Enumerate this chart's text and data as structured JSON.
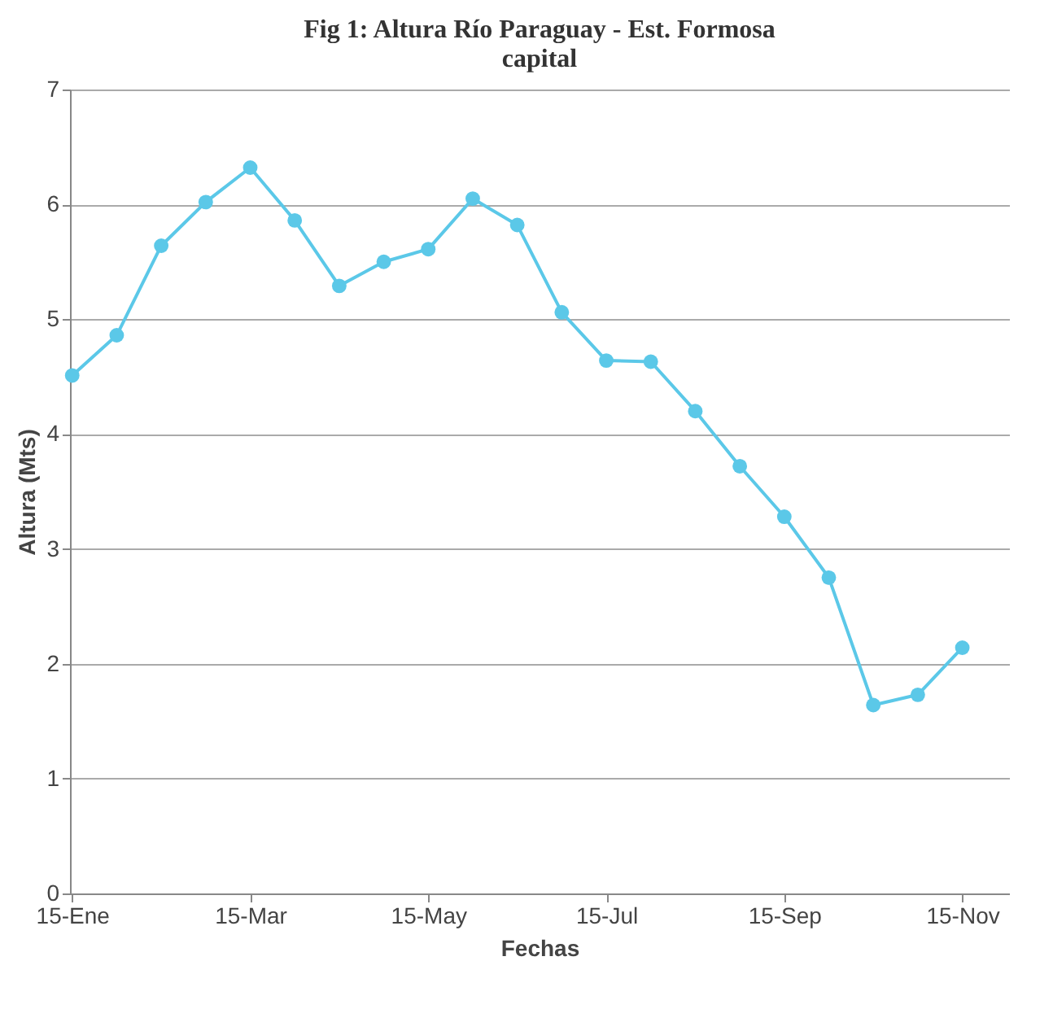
{
  "chart_data": {
    "type": "line",
    "title": [
      "Fig 1: Altura Río Paraguay - Est. Formosa",
      "capital"
    ],
    "xlabel": "Fechas",
    "ylabel": "Altura (Mts)",
    "categories": [
      "15-Ene",
      null,
      null,
      null,
      "15-Mar",
      null,
      null,
      null,
      "15-May",
      null,
      null,
      null,
      "15-Jul",
      null,
      null,
      null,
      "15-Sep",
      null,
      null,
      null,
      "15-Nov"
    ],
    "series": [
      {
        "color": "#5bc8e8",
        "values": [
          4.51,
          4.86,
          5.64,
          6.02,
          6.32,
          5.86,
          5.29,
          5.5,
          5.61,
          6.05,
          5.82,
          5.06,
          4.64,
          4.63,
          4.2,
          3.72,
          3.28,
          2.75,
          1.64,
          1.73,
          2.14
        ]
      }
    ],
    "ylim": [
      0,
      7
    ],
    "yticks": [
      0,
      1,
      2,
      3,
      4,
      5,
      6,
      7
    ],
    "grid": "y",
    "marker": "circle",
    "line_style": "solid"
  }
}
